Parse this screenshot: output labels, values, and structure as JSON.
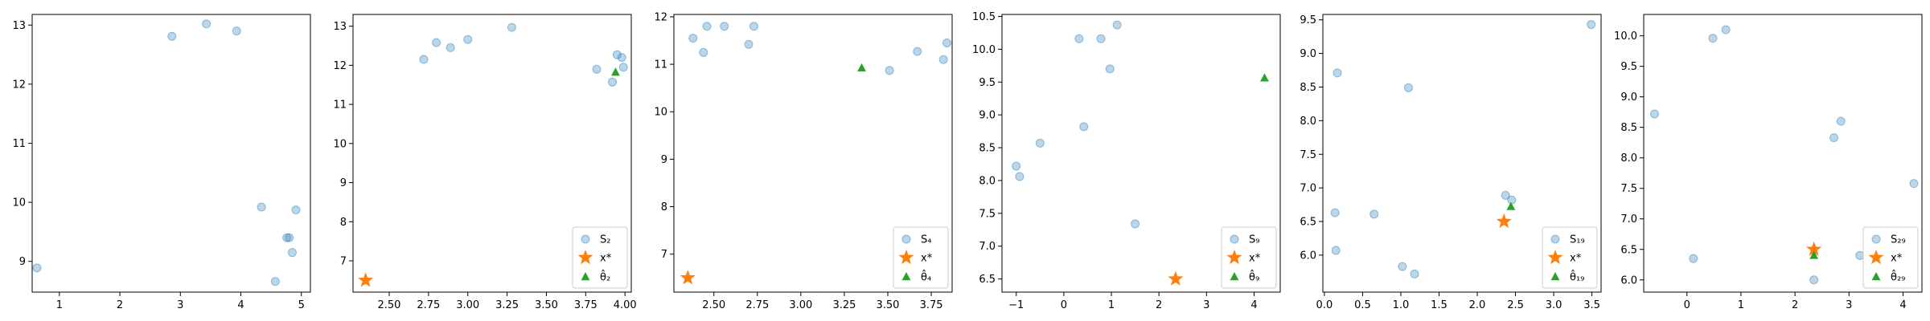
{
  "colors": {
    "points": "#1f77b4",
    "star": "#ff7f0e",
    "triangle": "#2ca02c"
  },
  "chart_data": [
    {
      "type": "scatter",
      "xlim": [
        0.55,
        5.15
      ],
      "ylim": [
        8.48,
        13.18
      ],
      "xticks": [
        "1",
        "2",
        "3",
        "4",
        "5"
      ],
      "xtick_values": [
        1,
        2,
        3,
        4,
        5
      ],
      "yticks": [
        "9",
        "10",
        "11",
        "12",
        "13"
      ],
      "ytick_values": [
        9,
        10,
        11,
        12,
        13
      ],
      "points": [
        [
          0.63,
          8.89
        ],
        [
          2.86,
          12.81
        ],
        [
          3.43,
          13.02
        ],
        [
          3.93,
          12.9
        ],
        [
          4.34,
          9.92
        ],
        [
          4.76,
          9.4
        ],
        [
          4.8,
          9.4
        ],
        [
          4.91,
          9.87
        ],
        [
          4.57,
          8.66
        ],
        [
          4.85,
          9.15
        ]
      ],
      "star": null,
      "triangle": null,
      "legend": null
    },
    {
      "type": "scatter",
      "xlim": [
        2.27,
        4.04
      ],
      "ylim": [
        6.2,
        13.3
      ],
      "xticks": [
        "2.50",
        "2.75",
        "3.00",
        "3.25",
        "3.50",
        "3.75",
        "4.00"
      ],
      "xtick_values": [
        2.5,
        2.75,
        3.0,
        3.25,
        3.5,
        3.75,
        4.0
      ],
      "yticks": [
        "7",
        "8",
        "9",
        "10",
        "11",
        "12",
        "13"
      ],
      "ytick_values": [
        7,
        8,
        9,
        10,
        11,
        12,
        13
      ],
      "points": [
        [
          2.72,
          12.15
        ],
        [
          2.8,
          12.58
        ],
        [
          2.89,
          12.45
        ],
        [
          3.0,
          12.66
        ],
        [
          3.28,
          12.97
        ],
        [
          3.82,
          11.9
        ],
        [
          3.92,
          11.57
        ],
        [
          3.95,
          12.27
        ],
        [
          3.98,
          12.2
        ],
        [
          3.99,
          11.95
        ]
      ],
      "star": [
        2.35,
        6.5
      ],
      "triangle": [
        3.94,
        11.82
      ],
      "legend": {
        "location": "lower-right",
        "entries": [
          "S₂",
          "x*",
          "θ̂₂"
        ]
      }
    },
    {
      "type": "scatter",
      "xlim": [
        2.27,
        3.87
      ],
      "ylim": [
        6.2,
        12.05
      ],
      "xticks": [
        "2.50",
        "2.75",
        "3.00",
        "3.25",
        "3.50",
        "3.75"
      ],
      "xtick_values": [
        2.5,
        2.75,
        3.0,
        3.25,
        3.5,
        3.75
      ],
      "yticks": [
        "7",
        "8",
        "9",
        "10",
        "11",
        "12"
      ],
      "ytick_values": [
        7,
        8,
        9,
        10,
        11,
        12
      ],
      "points": [
        [
          2.38,
          11.55
        ],
        [
          2.44,
          11.25
        ],
        [
          2.46,
          11.8
        ],
        [
          2.56,
          11.8
        ],
        [
          2.7,
          11.42
        ],
        [
          2.73,
          11.8
        ],
        [
          3.51,
          10.87
        ],
        [
          3.67,
          11.27
        ],
        [
          3.82,
          11.1
        ],
        [
          3.84,
          11.45
        ]
      ],
      "star": [
        2.35,
        6.5
      ],
      "triangle": [
        3.35,
        10.92
      ],
      "legend": {
        "location": "lower-right",
        "entries": [
          "S₄",
          "x*",
          "θ̂₄"
        ]
      }
    },
    {
      "type": "scatter",
      "xlim": [
        -1.3,
        4.55
      ],
      "ylim": [
        6.3,
        10.53
      ],
      "xticks": [
        "−1",
        "0",
        "1",
        "2",
        "3",
        "4"
      ],
      "xtick_values": [
        -1,
        0,
        1,
        2,
        3,
        4
      ],
      "yticks": [
        "6.5",
        "7.0",
        "7.5",
        "8.0",
        "8.5",
        "9.0",
        "9.5",
        "10.0",
        "10.5"
      ],
      "ytick_values": [
        6.5,
        7.0,
        7.5,
        8.0,
        8.5,
        9.0,
        9.5,
        10.0,
        10.5
      ],
      "points": [
        [
          -1.0,
          8.22
        ],
        [
          -0.93,
          8.06
        ],
        [
          -0.5,
          8.57
        ],
        [
          0.32,
          10.16
        ],
        [
          0.42,
          8.82
        ],
        [
          0.78,
          10.16
        ],
        [
          0.97,
          9.7
        ],
        [
          1.12,
          10.37
        ],
        [
          1.5,
          7.34
        ]
      ],
      "star": [
        2.35,
        6.5
      ],
      "triangle": [
        4.22,
        9.56
      ],
      "legend": {
        "location": "lower-right",
        "entries": [
          "S₉",
          "x*",
          "θ̂₉"
        ]
      }
    },
    {
      "type": "scatter",
      "xlim": [
        -0.02,
        3.62
      ],
      "ylim": [
        5.45,
        9.58
      ],
      "xticks": [
        "0.0",
        "0.5",
        "1.0",
        "1.5",
        "2.0",
        "2.5",
        "3.0",
        "3.5"
      ],
      "xtick_values": [
        0,
        0.5,
        1.0,
        1.5,
        2.0,
        2.5,
        3.0,
        3.5
      ],
      "yticks": [
        "6.0",
        "6.5",
        "7.0",
        "7.5",
        "8.0",
        "8.5",
        "9.0",
        "9.5"
      ],
      "ytick_values": [
        6.0,
        6.5,
        7.0,
        7.5,
        8.0,
        8.5,
        9.0,
        9.5
      ],
      "points": [
        [
          0.14,
          6.63
        ],
        [
          0.15,
          6.07
        ],
        [
          0.17,
          8.71
        ],
        [
          0.65,
          6.61
        ],
        [
          1.02,
          5.83
        ],
        [
          1.1,
          8.49
        ],
        [
          1.18,
          5.72
        ],
        [
          2.37,
          6.89
        ],
        [
          2.45,
          6.82
        ],
        [
          3.49,
          9.43
        ]
      ],
      "star": [
        2.35,
        6.5
      ],
      "triangle": [
        2.44,
        6.72
      ],
      "legend": {
        "location": "lower-right",
        "entries": [
          "S₁₉",
          "x*",
          "θ̂₁₉"
        ]
      }
    },
    {
      "type": "scatter",
      "xlim": [
        -0.8,
        4.35
      ],
      "ylim": [
        5.8,
        10.35
      ],
      "xticks": [
        "0",
        "1",
        "2",
        "3",
        "4"
      ],
      "xtick_values": [
        0,
        1,
        2,
        3,
        4
      ],
      "yticks": [
        "6.0",
        "6.5",
        "7.0",
        "7.5",
        "8.0",
        "8.5",
        "9.0",
        "9.5",
        "10.0"
      ],
      "ytick_values": [
        6.0,
        6.5,
        7.0,
        7.5,
        8.0,
        8.5,
        9.0,
        9.5,
        10.0
      ],
      "points": [
        [
          -0.6,
          8.72
        ],
        [
          0.12,
          6.35
        ],
        [
          0.48,
          9.96
        ],
        [
          0.72,
          10.1
        ],
        [
          2.72,
          8.33
        ],
        [
          2.85,
          8.6
        ],
        [
          2.35,
          6.0
        ],
        [
          3.2,
          6.4
        ],
        [
          4.2,
          7.58
        ]
      ],
      "star": [
        2.35,
        6.5
      ],
      "triangle": [
        2.35,
        6.4
      ],
      "legend": {
        "location": "lower-right",
        "entries": [
          "S₂₉",
          "x*",
          "θ̂₂₉"
        ]
      }
    }
  ]
}
